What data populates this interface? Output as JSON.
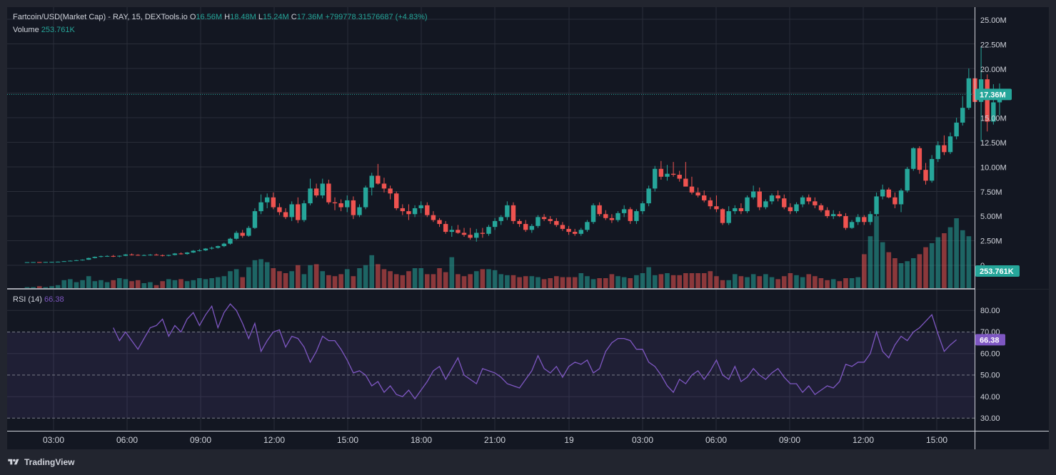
{
  "legend": {
    "symbol": "Fartcoin/USD(Market Cap)",
    "exchange_info": "- RAY, 15, DEXTools.io",
    "o_label": "O",
    "o": "16.56M",
    "h_label": "H",
    "h": "18.48M",
    "l_label": "L",
    "l": "15.24M",
    "c_label": "C",
    "c": "17.36M",
    "change": "+799778.31576687 (+4.83%)",
    "volume_label": "Volume",
    "volume_value": "253.761K"
  },
  "rsi_legend": {
    "label": "RSI (14)",
    "value": "66.38"
  },
  "price_axis": {
    "ticks": [
      "25.00M",
      "22.50M",
      "20.00M",
      "17.50M",
      "15.00M",
      "12.50M",
      "10.00M",
      "7.50M",
      "5.00M",
      "2.50M",
      "0"
    ],
    "last_price_label": "17.36M",
    "volume_label": "253.761K"
  },
  "rsi_axis": {
    "ticks": [
      "80.00",
      "70.00",
      "60.00",
      "50.00",
      "40.00",
      "30.00"
    ],
    "current_label": "66.38"
  },
  "time_axis": {
    "labels": [
      "03:00",
      "06:00",
      "09:00",
      "12:00",
      "15:00",
      "18:00",
      "21:00",
      "19",
      "03:00",
      "06:00",
      "09:00",
      "12:00",
      "15:00"
    ]
  },
  "footer": {
    "brand": "TradingView"
  },
  "colors": {
    "background": "#131722",
    "up": "#26a69a",
    "down": "#ef5350",
    "rsi_line": "#7e57c2",
    "grid": "#2a2e39"
  },
  "chart_data": [
    {
      "type": "candlestick",
      "title": "Fartcoin/USD(Market Cap)",
      "ylim": [
        0,
        26000000
      ],
      "last_price": 17360000,
      "ohlc": [
        [
          0.32,
          0.32,
          0.32,
          0.32
        ],
        [
          0.32,
          0.33,
          0.32,
          0.33
        ],
        [
          0.33,
          0.33,
          0.32,
          0.32
        ],
        [
          0.32,
          0.35,
          0.32,
          0.34
        ],
        [
          0.34,
          0.36,
          0.33,
          0.35
        ],
        [
          0.35,
          0.39,
          0.34,
          0.37
        ],
        [
          0.37,
          0.44,
          0.36,
          0.42
        ],
        [
          0.42,
          0.5,
          0.4,
          0.47
        ],
        [
          0.47,
          0.55,
          0.44,
          0.52
        ],
        [
          0.52,
          0.6,
          0.48,
          0.57
        ],
        [
          0.57,
          0.78,
          0.55,
          0.74
        ],
        [
          0.74,
          0.9,
          0.7,
          0.86
        ],
        [
          0.86,
          0.98,
          0.8,
          0.93
        ],
        [
          0.93,
          1.02,
          0.86,
          0.95
        ],
        [
          0.95,
          1.05,
          0.84,
          0.9
        ],
        [
          0.9,
          1.0,
          0.82,
          0.97
        ],
        [
          0.97,
          1.15,
          0.93,
          1.1
        ],
        [
          1.1,
          1.2,
          1.0,
          1.06
        ],
        [
          1.06,
          1.12,
          0.98,
          1.02
        ],
        [
          1.02,
          1.1,
          0.95,
          1.04
        ],
        [
          1.04,
          1.14,
          0.98,
          1.08
        ],
        [
          1.08,
          1.18,
          1.0,
          1.03
        ],
        [
          1.03,
          1.1,
          0.9,
          0.97
        ],
        [
          0.97,
          1.08,
          0.92,
          1.05
        ],
        [
          1.05,
          1.25,
          1.0,
          1.2
        ],
        [
          1.2,
          1.3,
          1.1,
          1.15
        ],
        [
          1.15,
          1.35,
          1.08,
          1.3
        ],
        [
          1.3,
          1.55,
          1.25,
          1.48
        ],
        [
          1.48,
          1.65,
          1.4,
          1.52
        ],
        [
          1.52,
          1.75,
          1.45,
          1.7
        ],
        [
          1.7,
          1.9,
          1.6,
          1.78
        ],
        [
          1.78,
          2.0,
          1.7,
          1.95
        ],
        [
          1.95,
          2.3,
          1.85,
          2.2
        ],
        [
          2.2,
          2.8,
          2.1,
          2.7
        ],
        [
          2.7,
          3.5,
          2.6,
          3.3
        ],
        [
          3.3,
          3.6,
          2.8,
          3.0
        ],
        [
          3.0,
          4.0,
          2.9,
          3.8
        ],
        [
          3.8,
          5.8,
          3.7,
          5.5
        ],
        [
          5.5,
          7.2,
          5.2,
          6.4
        ],
        [
          6.4,
          7.3,
          5.8,
          6.9
        ],
        [
          6.9,
          7.4,
          5.7,
          5.9
        ],
        [
          5.9,
          6.3,
          5.1,
          5.4
        ],
        [
          5.4,
          5.8,
          4.7,
          4.9
        ],
        [
          4.9,
          6.5,
          4.5,
          6.2
        ],
        [
          6.2,
          6.9,
          4.3,
          4.6
        ],
        [
          4.6,
          6.6,
          4.4,
          6.3
        ],
        [
          6.3,
          8.8,
          6.1,
          7.8
        ],
        [
          7.8,
          8.3,
          6.9,
          7.1
        ],
        [
          7.1,
          8.8,
          6.8,
          8.3
        ],
        [
          8.3,
          8.7,
          6.2,
          6.4
        ],
        [
          6.4,
          6.9,
          5.6,
          6.3
        ],
        [
          6.3,
          6.7,
          5.5,
          5.9
        ],
        [
          5.9,
          7.1,
          5.4,
          6.6
        ],
        [
          6.6,
          7.0,
          4.7,
          5.1
        ],
        [
          5.1,
          6.2,
          4.9,
          5.9
        ],
        [
          5.9,
          8.1,
          5.7,
          7.9
        ],
        [
          7.9,
          9.4,
          7.1,
          9.1
        ],
        [
          9.1,
          10.3,
          8.2,
          8.3
        ],
        [
          8.3,
          8.9,
          7.4,
          7.8
        ],
        [
          7.8,
          8.1,
          6.7,
          7.3
        ],
        [
          7.3,
          7.5,
          5.6,
          5.8
        ],
        [
          5.8,
          6.2,
          5.1,
          5.5
        ],
        [
          5.5,
          6.2,
          4.6,
          5.2
        ],
        [
          5.2,
          6.1,
          4.9,
          5.8
        ],
        [
          5.8,
          6.5,
          5.3,
          6.1
        ],
        [
          6.1,
          6.4,
          4.9,
          5.1
        ],
        [
          5.1,
          5.5,
          4.4,
          4.6
        ],
        [
          4.6,
          4.8,
          3.9,
          4.2
        ],
        [
          4.2,
          4.5,
          3.2,
          3.4
        ],
        [
          3.4,
          4.0,
          2.9,
          3.6
        ],
        [
          3.6,
          4.1,
          3.2,
          3.3
        ],
        [
          3.3,
          3.8,
          2.9,
          3.1
        ],
        [
          3.1,
          3.8,
          2.6,
          2.8
        ],
        [
          2.8,
          3.7,
          2.4,
          3.3
        ],
        [
          3.3,
          3.8,
          2.8,
          3.2
        ],
        [
          3.2,
          4.1,
          3.0,
          3.9
        ],
        [
          3.9,
          4.8,
          3.6,
          4.5
        ],
        [
          4.5,
          5.1,
          4.1,
          4.9
        ],
        [
          4.9,
          6.5,
          4.6,
          6.1
        ],
        [
          6.1,
          6.4,
          4.2,
          4.5
        ],
        [
          4.5,
          4.7,
          3.9,
          4.2
        ],
        [
          4.2,
          4.6,
          3.4,
          3.6
        ],
        [
          3.6,
          4.2,
          3.3,
          4.0
        ],
        [
          4.0,
          5.1,
          3.8,
          4.9
        ],
        [
          4.9,
          5.2,
          4.5,
          4.7
        ],
        [
          4.7,
          5.0,
          4.2,
          4.5
        ],
        [
          4.5,
          4.8,
          3.9,
          4.1
        ],
        [
          4.1,
          4.4,
          3.5,
          3.7
        ],
        [
          3.7,
          4.0,
          3.1,
          3.4
        ],
        [
          3.4,
          3.7,
          3.0,
          3.2
        ],
        [
          3.2,
          3.8,
          3.0,
          3.6
        ],
        [
          3.6,
          4.6,
          3.4,
          4.4
        ],
        [
          4.4,
          6.3,
          4.2,
          6.1
        ],
        [
          6.1,
          6.4,
          5.0,
          5.2
        ],
        [
          5.2,
          5.6,
          4.6,
          4.8
        ],
        [
          4.8,
          5.2,
          4.3,
          4.6
        ],
        [
          4.6,
          5.5,
          4.4,
          5.3
        ],
        [
          5.3,
          6.1,
          4.9,
          5.7
        ],
        [
          5.7,
          5.9,
          4.2,
          4.5
        ],
        [
          4.5,
          5.7,
          4.2,
          5.5
        ],
        [
          5.5,
          6.5,
          5.2,
          6.3
        ],
        [
          6.3,
          8.1,
          6.0,
          7.8
        ],
        [
          7.8,
          10.1,
          7.5,
          9.8
        ],
        [
          9.8,
          10.6,
          8.7,
          9.0
        ],
        [
          9.0,
          10.2,
          8.6,
          9.3
        ],
        [
          9.3,
          10.5,
          9.0,
          9.2
        ],
        [
          9.2,
          9.6,
          8.5,
          8.8
        ],
        [
          8.8,
          10.5,
          8.3,
          8.0
        ],
        [
          8.0,
          9.0,
          7.2,
          7.4
        ],
        [
          7.4,
          7.9,
          6.9,
          7.1
        ],
        [
          7.1,
          7.6,
          6.4,
          6.6
        ],
        [
          6.6,
          6.9,
          5.7,
          6.0
        ],
        [
          6.0,
          7.1,
          5.4,
          5.7
        ],
        [
          5.7,
          5.8,
          4.1,
          4.3
        ],
        [
          4.3,
          6.0,
          4.1,
          5.5
        ],
        [
          5.5,
          6.1,
          5.2,
          5.8
        ],
        [
          5.8,
          6.3,
          5.2,
          5.5
        ],
        [
          5.5,
          7.1,
          5.3,
          6.9
        ],
        [
          6.9,
          8.1,
          6.7,
          7.5
        ],
        [
          7.5,
          7.9,
          5.6,
          5.9
        ],
        [
          5.9,
          6.7,
          5.7,
          6.5
        ],
        [
          6.5,
          7.3,
          6.2,
          7.1
        ],
        [
          7.1,
          7.6,
          6.5,
          6.8
        ],
        [
          6.8,
          7.2,
          5.7,
          5.9
        ],
        [
          5.9,
          6.3,
          5.2,
          5.5
        ],
        [
          5.5,
          6.4,
          5.3,
          6.2
        ],
        [
          6.2,
          7.1,
          5.9,
          6.9
        ],
        [
          6.9,
          7.2,
          6.2,
          6.5
        ],
        [
          6.5,
          6.9,
          5.8,
          6.1
        ],
        [
          6.1,
          6.3,
          5.4,
          5.6
        ],
        [
          5.6,
          5.9,
          4.8,
          5.0
        ],
        [
          5.0,
          5.6,
          4.7,
          5.2
        ],
        [
          5.2,
          5.5,
          4.9,
          5.0
        ],
        [
          5.0,
          5.3,
          3.6,
          3.8
        ],
        [
          3.8,
          4.6,
          3.7,
          4.4
        ],
        [
          4.4,
          5.2,
          4.1,
          4.9
        ],
        [
          4.9,
          5.1,
          4.1,
          4.4
        ],
        [
          4.4,
          5.5,
          4.1,
          5.2
        ],
        [
          5.2,
          7.4,
          5.0,
          7.0
        ],
        [
          7.0,
          8.2,
          6.7,
          7.7
        ],
        [
          7.7,
          7.9,
          6.8,
          6.9
        ],
        [
          6.9,
          7.4,
          5.8,
          6.2
        ],
        [
          6.2,
          7.8,
          5.4,
          7.6
        ],
        [
          7.6,
          10.0,
          7.4,
          9.8
        ],
        [
          9.8,
          12.0,
          9.6,
          11.9
        ],
        [
          11.9,
          12.1,
          9.3,
          9.7
        ],
        [
          9.7,
          10.4,
          8.2,
          8.6
        ],
        [
          8.6,
          11.2,
          8.4,
          10.8
        ],
        [
          10.8,
          12.6,
          10.5,
          12.2
        ],
        [
          12.2,
          13.2,
          11.2,
          11.5
        ],
        [
          11.5,
          13.5,
          11.3,
          13.1
        ],
        [
          13.1,
          15.0,
          12.8,
          14.5
        ],
        [
          14.5,
          17.2,
          14.2,
          16.0
        ],
        [
          16.0,
          20.0,
          15.8,
          19.0
        ],
        [
          19.0,
          23.4,
          16.4,
          16.6
        ],
        [
          16.6,
          22.2,
          12.6,
          18.9
        ],
        [
          18.9,
          19.4,
          13.6,
          14.6
        ],
        [
          14.6,
          18.4,
          14.3,
          16.56
        ],
        [
          16.56,
          18.48,
          15.24,
          17.36
        ]
      ],
      "volume": [
        0.01,
        0.01,
        0.02,
        0.01,
        0.02,
        0.03,
        0.08,
        0.09,
        0.06,
        0.08,
        0.12,
        0.07,
        0.08,
        0.06,
        0.08,
        0.1,
        0.09,
        0.07,
        0.08,
        0.05,
        0.06,
        0.03,
        0.07,
        0.09,
        0.08,
        0.09,
        0.07,
        0.08,
        0.1,
        0.09,
        0.1,
        0.11,
        0.12,
        0.17,
        0.19,
        0.11,
        0.21,
        0.28,
        0.29,
        0.26,
        0.2,
        0.17,
        0.15,
        0.17,
        0.23,
        0.14,
        0.23,
        0.24,
        0.17,
        0.13,
        0.12,
        0.14,
        0.19,
        0.12,
        0.2,
        0.23,
        0.33,
        0.24,
        0.19,
        0.17,
        0.14,
        0.13,
        0.17,
        0.2,
        0.2,
        0.14,
        0.14,
        0.2,
        0.16,
        0.31,
        0.14,
        0.12,
        0.14,
        0.17,
        0.19,
        0.19,
        0.18,
        0.14,
        0.13,
        0.13,
        0.11,
        0.12,
        0.12,
        0.11,
        0.09,
        0.1,
        0.12,
        0.11,
        0.11,
        0.11,
        0.15,
        0.12,
        0.09,
        0.1,
        0.1,
        0.14,
        0.12,
        0.11,
        0.1,
        0.13,
        0.15,
        0.21,
        0.13,
        0.14,
        0.15,
        0.13,
        0.13,
        0.15,
        0.15,
        0.15,
        0.15,
        0.17,
        0.12,
        0.08,
        0.08,
        0.14,
        0.12,
        0.11,
        0.14,
        0.12,
        0.14,
        0.11,
        0.09,
        0.12,
        0.15,
        0.13,
        0.11,
        0.14,
        0.12,
        0.1,
        0.08,
        0.09,
        0.07,
        0.1,
        0.1,
        0.11,
        0.34,
        0.52,
        0.72,
        0.46,
        0.36,
        0.3,
        0.25,
        0.27,
        0.3,
        0.34,
        0.41,
        0.45,
        0.51,
        0.55,
        0.61,
        0.7,
        0.58,
        0.52
      ],
      "volume_last": 253761
    },
    {
      "type": "line",
      "title": "RSI (14)",
      "ylim": [
        24,
        86
      ],
      "bands": [
        30,
        50,
        70
      ],
      "current": 66.38,
      "values": [
        72,
        66,
        70,
        66,
        62,
        67,
        72,
        73,
        76,
        68,
        73,
        70,
        76,
        79,
        73,
        78,
        82,
        72,
        79,
        83,
        80,
        74,
        67,
        74,
        61,
        66,
        70,
        71,
        63,
        68,
        67,
        63,
        56,
        61,
        68,
        66,
        66,
        62,
        57,
        51,
        52,
        50,
        45,
        47,
        42,
        45,
        41,
        40,
        43,
        39,
        43,
        47,
        52,
        54,
        48,
        53,
        58,
        50,
        48,
        46,
        53,
        52,
        51,
        49,
        46,
        45,
        44,
        48,
        52,
        59,
        53,
        51,
        54,
        49,
        54,
        56,
        55,
        57,
        51,
        53,
        61,
        65,
        67,
        67,
        66,
        62,
        62,
        56,
        54,
        50,
        45,
        42,
        48,
        46,
        50,
        52,
        48,
        52,
        57,
        50,
        48,
        54,
        47,
        49,
        53,
        50,
        48,
        51,
        53,
        49,
        46,
        46,
        42,
        45,
        41,
        43,
        45,
        44,
        47,
        55,
        54,
        56,
        56,
        60,
        70,
        61,
        58,
        64,
        68,
        66,
        70,
        72,
        75,
        78,
        69,
        61,
        64,
        66.38
      ]
    }
  ]
}
